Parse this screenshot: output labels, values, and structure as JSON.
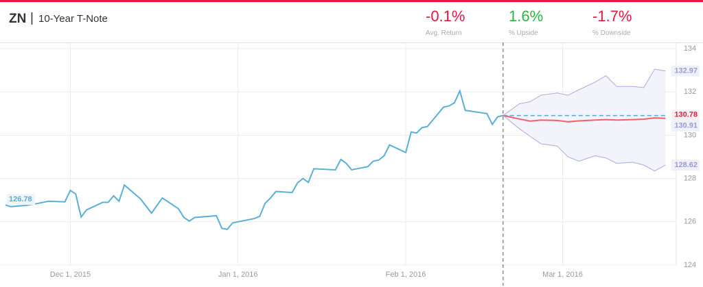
{
  "header": {
    "symbol": "ZN",
    "name": "10-Year T-Note"
  },
  "stats": [
    {
      "value": "-0.1%",
      "label": "Avg. Return",
      "color": "#e8173f"
    },
    {
      "value": "1.6%",
      "label": "% Upside",
      "color": "#2fb24a"
    },
    {
      "value": "-1.7%",
      "label": "% Downside",
      "color": "#e8173f"
    }
  ],
  "chart_data": {
    "type": "line",
    "x": [
      "2015-11-19",
      "2015-11-20",
      "2015-11-23",
      "2015-11-25",
      "2015-11-27",
      "2015-11-30",
      "2015-12-01",
      "2015-12-02",
      "2015-12-03",
      "2015-12-04",
      "2015-12-07",
      "2015-12-08",
      "2015-12-09",
      "2015-12-10",
      "2015-12-11",
      "2015-12-14",
      "2015-12-16",
      "2015-12-18",
      "2015-12-21",
      "2015-12-22",
      "2015-12-23",
      "2015-12-24",
      "2015-12-28",
      "2015-12-29",
      "2015-12-30",
      "2015-12-31",
      "2016-01-04",
      "2016-01-05",
      "2016-01-06",
      "2016-01-07",
      "2016-01-08",
      "2016-01-11",
      "2016-01-12",
      "2016-01-13",
      "2016-01-14",
      "2016-01-15",
      "2016-01-19",
      "2016-01-20",
      "2016-01-21",
      "2016-01-22",
      "2016-01-25",
      "2016-01-26",
      "2016-01-27",
      "2016-01-28",
      "2016-01-29",
      "2016-02-01",
      "2016-02-02",
      "2016-02-03",
      "2016-02-04",
      "2016-02-05",
      "2016-02-08",
      "2016-02-09",
      "2016-02-10",
      "2016-02-11",
      "2016-02-12",
      "2016-02-16",
      "2016-02-17",
      "2016-02-18",
      "2016-02-19",
      "2016-02-22",
      "2016-02-24",
      "2016-02-26",
      "2016-02-29",
      "2016-03-02",
      "2016-03-04",
      "2016-03-07",
      "2016-03-09",
      "2016-03-11",
      "2016-03-14",
      "2016-03-16",
      "2016-03-18",
      "2016-03-20"
    ],
    "series": [
      {
        "color": "#5aafd6",
        "values": [
          126.78,
          126.7,
          126.76,
          126.85,
          126.95,
          126.92,
          127.45,
          127.28,
          126.22,
          126.55,
          126.9,
          126.9,
          127.2,
          126.95,
          127.7,
          127.05,
          126.4,
          127.1,
          126.6,
          126.2,
          126.03,
          126.2,
          126.28,
          125.7,
          125.65,
          125.95,
          126.15,
          126.25,
          126.85,
          127.1,
          127.4,
          127.35,
          127.8,
          128.0,
          127.82,
          128.45,
          128.4,
          128.88,
          128.7,
          128.4,
          128.55,
          128.8,
          128.85,
          129.05,
          129.55,
          129.2,
          130.15,
          130.1,
          130.35,
          130.4,
          131.3,
          131.35,
          131.5,
          132.05,
          131.15,
          131.0,
          130.5,
          130.85,
          130.91,
          null,
          null,
          null,
          null,
          null,
          null,
          null,
          null,
          null,
          null,
          null,
          null,
          null
        ]
      },
      {
        "color": "#a9a9e2",
        "values": [
          null,
          null,
          null,
          null,
          null,
          null,
          null,
          null,
          null,
          null,
          null,
          null,
          null,
          null,
          null,
          null,
          null,
          null,
          null,
          null,
          null,
          null,
          null,
          null,
          null,
          null,
          null,
          null,
          null,
          null,
          null,
          null,
          null,
          null,
          null,
          null,
          null,
          null,
          null,
          null,
          null,
          null,
          null,
          null,
          null,
          null,
          null,
          null,
          null,
          null,
          null,
          null,
          null,
          null,
          null,
          null,
          null,
          null,
          130.91,
          131.45,
          131.55,
          131.85,
          131.95,
          131.85,
          132.1,
          132.45,
          132.75,
          132.25,
          132.25,
          132.2,
          133.05,
          132.97
        ]
      },
      {
        "color": "#f0606a",
        "values": [
          null,
          null,
          null,
          null,
          null,
          null,
          null,
          null,
          null,
          null,
          null,
          null,
          null,
          null,
          null,
          null,
          null,
          null,
          null,
          null,
          null,
          null,
          null,
          null,
          null,
          null,
          null,
          null,
          null,
          null,
          null,
          null,
          null,
          null,
          null,
          null,
          null,
          null,
          null,
          null,
          null,
          null,
          null,
          null,
          null,
          null,
          null,
          null,
          null,
          null,
          null,
          null,
          null,
          null,
          null,
          null,
          null,
          null,
          130.91,
          130.75,
          130.65,
          130.7,
          130.68,
          130.62,
          130.66,
          130.7,
          130.72,
          130.7,
          130.72,
          130.74,
          130.8,
          130.78
        ]
      },
      {
        "color": "#a9a9e2",
        "values": [
          null,
          null,
          null,
          null,
          null,
          null,
          null,
          null,
          null,
          null,
          null,
          null,
          null,
          null,
          null,
          null,
          null,
          null,
          null,
          null,
          null,
          null,
          null,
          null,
          null,
          null,
          null,
          null,
          null,
          null,
          null,
          null,
          null,
          null,
          null,
          null,
          null,
          null,
          null,
          null,
          null,
          null,
          null,
          null,
          null,
          null,
          null,
          null,
          null,
          null,
          null,
          null,
          null,
          null,
          null,
          null,
          null,
          null,
          130.91,
          130.3,
          129.95,
          129.6,
          129.5,
          129.0,
          128.8,
          129.05,
          128.95,
          128.7,
          128.75,
          128.62,
          128.35,
          128.62
        ]
      }
    ],
    "xlim": [
      "2015-11-18",
      "2016-03-22"
    ],
    "xticks": [
      {
        "value": "2015-12-01",
        "label": "Dec 1, 2015"
      },
      {
        "value": "2016-01-01",
        "label": "Jan 1, 2016"
      },
      {
        "value": "2016-02-01",
        "label": "Feb 1, 2016"
      },
      {
        "value": "2016-03-01",
        "label": "Mar 1, 2016"
      }
    ],
    "ylim": [
      124,
      134
    ],
    "yticks": [
      124,
      126,
      128,
      130,
      132,
      134
    ],
    "grid": true
  }
}
